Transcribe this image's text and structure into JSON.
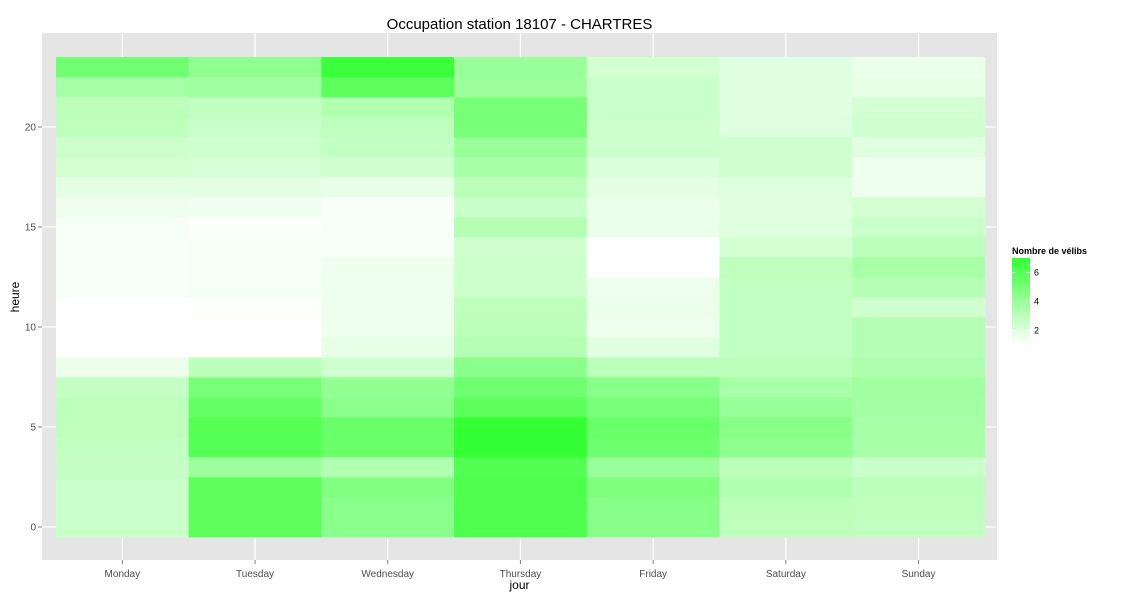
{
  "chart_data": {
    "type": "heatmap",
    "title": "Occupation station 18107 - CHARTRES",
    "xlabel": "jour",
    "ylabel": "heure",
    "x": [
      "Monday",
      "Tuesday",
      "Wednesday",
      "Thursday",
      "Friday",
      "Saturday",
      "Sunday"
    ],
    "y": [
      0,
      1,
      2,
      3,
      4,
      5,
      6,
      7,
      8,
      9,
      10,
      11,
      12,
      13,
      14,
      15,
      16,
      17,
      18,
      19,
      20,
      21,
      22,
      23
    ],
    "y_ticks": [
      0,
      5,
      10,
      15,
      20
    ],
    "ylim": [
      -0.5,
      23.5
    ],
    "values": [
      [
        2.6,
        5.8,
        4.4,
        6.2,
        4.5,
        2.9,
        2.8
      ],
      [
        2.6,
        5.8,
        4.4,
        6.2,
        4.5,
        3.0,
        2.9
      ],
      [
        2.6,
        5.8,
        4.7,
        6.2,
        4.8,
        3.3,
        3.0
      ],
      [
        2.7,
        3.9,
        3.3,
        6.1,
        4.0,
        3.0,
        2.6
      ],
      [
        2.8,
        6.0,
        5.4,
        7.0,
        5.3,
        4.3,
        3.6
      ],
      [
        2.9,
        6.0,
        5.4,
        7.0,
        5.4,
        4.5,
        3.6
      ],
      [
        2.9,
        5.5,
        4.4,
        5.8,
        4.9,
        4.0,
        3.7
      ],
      [
        2.7,
        5.0,
        4.2,
        5.2,
        4.5,
        3.6,
        3.8
      ],
      [
        1.6,
        3.0,
        2.4,
        4.4,
        3.0,
        3.0,
        3.4
      ],
      [
        1.0,
        1.0,
        1.7,
        3.2,
        1.9,
        2.8,
        3.2
      ],
      [
        1.0,
        1.0,
        1.5,
        3.0,
        1.5,
        2.8,
        3.2
      ],
      [
        1.0,
        1.1,
        1.5,
        2.9,
        1.6,
        2.8,
        2.4
      ],
      [
        1.2,
        1.3,
        1.5,
        2.5,
        1.5,
        2.8,
        3.2
      ],
      [
        1.2,
        1.3,
        1.5,
        2.5,
        1.0,
        2.9,
        3.6
      ],
      [
        1.2,
        1.3,
        1.2,
        2.4,
        1.0,
        2.3,
        3.0
      ],
      [
        1.3,
        1.1,
        1.2,
        3.2,
        1.6,
        2.0,
        2.6
      ],
      [
        1.5,
        1.4,
        1.2,
        2.6,
        1.6,
        1.9,
        2.3
      ],
      [
        1.8,
        1.8,
        1.7,
        3.0,
        1.8,
        2.0,
        1.5
      ],
      [
        2.3,
        2.2,
        2.4,
        3.6,
        2.1,
        2.4,
        1.5
      ],
      [
        2.5,
        2.4,
        2.8,
        4.0,
        2.5,
        2.4,
        1.9
      ],
      [
        2.9,
        2.6,
        2.9,
        5.0,
        2.5,
        2.0,
        2.4
      ],
      [
        3.0,
        2.8,
        3.3,
        5.0,
        2.6,
        1.9,
        2.3
      ],
      [
        3.6,
        3.8,
        5.8,
        3.9,
        2.6,
        1.9,
        1.7
      ],
      [
        5.2,
        4.3,
        6.8,
        4.0,
        2.3,
        1.9,
        1.6
      ]
    ],
    "legend": {
      "title": "Nombre de vélibs",
      "labels": [
        "2",
        "4",
        "6"
      ],
      "ticks": [
        2,
        4,
        6
      ],
      "range": [
        1,
        7
      ],
      "low_color": "#ffffff",
      "high_color": "#33ff33"
    },
    "panel_background": "#e5e5e5",
    "grid": true
  }
}
